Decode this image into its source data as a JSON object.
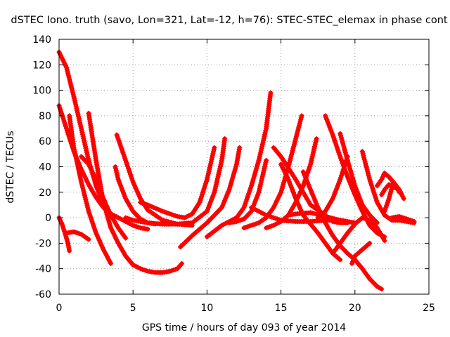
{
  "chart_data": {
    "type": "scatter",
    "title": "dSTEC Iono. truth (savo, Lon=321, Lat=-12, h=76): STEC-STEC_elemax in phase cont",
    "xlabel": "GPS time / hours of day 093 of year 2014",
    "ylabel": "dSTEC  / TECUs",
    "xlim": [
      0,
      25
    ],
    "ylim": [
      -60,
      140
    ],
    "xticks": [
      0,
      5,
      10,
      15,
      20,
      25
    ],
    "yticks": [
      -60,
      -40,
      -20,
      0,
      20,
      40,
      60,
      80,
      100,
      120,
      140
    ],
    "grid": true,
    "marker": "+",
    "color": "#ff0000",
    "series": [
      {
        "x": [
          0.0,
          0.5,
          1.0,
          1.5,
          2.0,
          2.5,
          3.0,
          3.5,
          4.0
        ],
        "y": [
          130,
          118,
          95,
          70,
          45,
          25,
          10,
          3,
          0
        ]
      },
      {
        "x": [
          0.0,
          0.5,
          1.0,
          1.5,
          2.0,
          2.5,
          3.0,
          3.5,
          4.0,
          4.5,
          5.0,
          5.5,
          6.0
        ],
        "y": [
          88,
          70,
          52,
          38,
          26,
          16,
          8,
          3,
          0,
          -3,
          -6,
          -8,
          -9
        ]
      },
      {
        "x": [
          0.0,
          0.2,
          0.4,
          0.6,
          0.7
        ],
        "y": [
          0,
          -5,
          -12,
          -20,
          -26
        ]
      },
      {
        "x": [
          0.5,
          1.0,
          1.5,
          2.0
        ],
        "y": [
          -12,
          -11,
          -13,
          -17
        ]
      },
      {
        "x": [
          0.7,
          1.0,
          1.5,
          2.0,
          2.5,
          3.0,
          3.5
        ],
        "y": [
          80,
          55,
          28,
          5,
          -12,
          -25,
          -36
        ]
      },
      {
        "x": [
          1.5,
          2.0,
          2.5,
          3.0,
          3.5,
          4.0,
          4.5
        ],
        "y": [
          48,
          42,
          30,
          15,
          2,
          -8,
          -16
        ]
      },
      {
        "x": [
          2.0,
          2.5,
          3.0,
          3.5,
          4.0,
          4.5,
          5.0,
          5.5,
          6.0,
          6.5,
          7.0,
          7.5,
          8.0,
          8.3
        ],
        "y": [
          82,
          45,
          12,
          -8,
          -20,
          -30,
          -37,
          -40,
          -42,
          -43,
          -43,
          -42,
          -40,
          -36
        ]
      },
      {
        "x": [
          3.8,
          4.0,
          4.5,
          5.0,
          5.5,
          6.0,
          6.5
        ],
        "y": [
          40,
          30,
          15,
          5,
          -1,
          -4,
          -5
        ]
      },
      {
        "x": [
          3.9,
          4.5,
          5.0,
          5.5,
          6.0,
          7.0,
          8.0,
          9.0
        ],
        "y": [
          65,
          45,
          28,
          15,
          6,
          -2,
          -5,
          -6
        ]
      },
      {
        "x": [
          4.5,
          5.0,
          6.0,
          7.0,
          8.0,
          9.0
        ],
        "y": [
          0,
          -2,
          -4,
          -5,
          -5,
          -4
        ]
      },
      {
        "x": [
          5.5,
          6.0,
          7.0,
          8.0,
          8.5,
          9.0,
          9.5,
          10.0,
          10.5
        ],
        "y": [
          12,
          10,
          5,
          1,
          0,
          3,
          12,
          30,
          55
        ]
      },
      {
        "x": [
          7.0,
          8.0,
          9.0,
          10.0,
          10.5,
          11.0,
          11.2
        ],
        "y": [
          -3,
          -5,
          -4,
          5,
          20,
          45,
          62
        ]
      },
      {
        "x": [
          8.2,
          9.0,
          10.0,
          11.0,
          11.5,
          12.0,
          12.2
        ],
        "y": [
          -23,
          -14,
          -4,
          8,
          22,
          42,
          55
        ]
      },
      {
        "x": [
          10.0,
          11.0,
          12.0,
          12.5,
          13.0,
          13.5,
          14.0,
          14.3
        ],
        "y": [
          -15,
          -6,
          0,
          8,
          25,
          45,
          70,
          98
        ]
      },
      {
        "x": [
          11.5,
          12.0,
          12.5,
          13.0,
          13.5,
          14.0
        ],
        "y": [
          -4,
          -3,
          -1,
          5,
          20,
          45
        ]
      },
      {
        "x": [
          12.5,
          13.0,
          13.5,
          14.0,
          14.5,
          15.0,
          15.5,
          16.0,
          16.4
        ],
        "y": [
          -8,
          -6,
          -4,
          0,
          8,
          20,
          40,
          62,
          80
        ]
      },
      {
        "x": [
          13.0,
          14.0,
          15.0,
          16.0,
          17.0,
          18.0,
          19.0,
          19.5
        ],
        "y": [
          8,
          2,
          -2,
          -3,
          -3,
          -2,
          -2,
          -3
        ]
      },
      {
        "x": [
          14.0,
          14.5,
          15.0,
          15.5,
          16.0,
          16.5,
          17.0,
          17.4
        ],
        "y": [
          -8,
          -6,
          -3,
          2,
          12,
          25,
          42,
          62
        ]
      },
      {
        "x": [
          14.5,
          15.0,
          16.0,
          17.0,
          18.0,
          18.5,
          19.0,
          19.5
        ],
        "y": [
          55,
          48,
          30,
          10,
          2,
          -3,
          -4,
          -4
        ]
      },
      {
        "x": [
          15.0,
          15.5,
          16.0,
          16.5,
          17.0,
          17.5,
          18.0,
          18.5,
          19.0
        ],
        "y": [
          42,
          30,
          15,
          2,
          -5,
          -12,
          -20,
          -28,
          -33
        ]
      },
      {
        "x": [
          15.5,
          16.0,
          17.0,
          18.0,
          19.0,
          20.0
        ],
        "y": [
          2,
          3,
          4,
          1,
          -2,
          -4
        ]
      },
      {
        "x": [
          16.5,
          17.0,
          17.5,
          18.0,
          18.5,
          19.0,
          19.5,
          20.0,
          20.5,
          21.0,
          21.5,
          21.8
        ],
        "y": [
          36,
          22,
          8,
          -4,
          -14,
          -22,
          -28,
          -33,
          -40,
          -48,
          -54,
          -56
        ]
      },
      {
        "x": [
          17.5,
          18.0,
          18.5,
          19.0,
          19.5
        ],
        "y": [
          0,
          5,
          15,
          30,
          48
        ]
      },
      {
        "x": [
          18.0,
          18.5,
          19.0,
          19.5,
          20.0,
          20.5,
          21.0,
          21.5,
          22.0
        ],
        "y": [
          80,
          65,
          48,
          32,
          18,
          5,
          -6,
          -12,
          -15
        ]
      },
      {
        "x": [
          18.5,
          19.0,
          19.5,
          20.0,
          20.5,
          21.0,
          21.5,
          22.0
        ],
        "y": [
          -28,
          -20,
          -12,
          -5,
          0,
          -2,
          -8,
          -18
        ]
      },
      {
        "x": [
          19.0,
          19.5,
          20.0,
          20.5,
          21.0,
          21.5
        ],
        "y": [
          66,
          45,
          25,
          10,
          2,
          -4
        ]
      },
      {
        "x": [
          19.8,
          20.0,
          20.5,
          21.0
        ],
        "y": [
          -36,
          -30,
          -25,
          -20
        ]
      },
      {
        "x": [
          20.5,
          21.0,
          21.5,
          22.0,
          22.5,
          23.0,
          23.5,
          24.0
        ],
        "y": [
          52,
          30,
          12,
          2,
          -2,
          -2,
          -3,
          -4
        ]
      },
      {
        "x": [
          21.5,
          21.8,
          22.0,
          22.3,
          22.6,
          23.0
        ],
        "y": [
          25,
          30,
          35,
          32,
          28,
          20
        ]
      },
      {
        "x": [
          21.8,
          22.0,
          22.3,
          22.6,
          23.0,
          23.3
        ],
        "y": [
          18,
          22,
          26,
          24,
          22,
          15
        ]
      },
      {
        "x": [
          22.0,
          22.3,
          22.6,
          23.0
        ],
        "y": [
          5,
          15,
          28,
          22
        ]
      },
      {
        "x": [
          22.5,
          23.0,
          23.5,
          24.0
        ],
        "y": [
          0,
          1,
          -1,
          -3
        ]
      }
    ]
  }
}
